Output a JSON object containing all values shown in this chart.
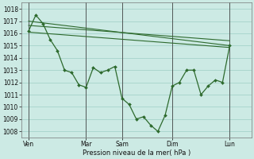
{
  "bg_color": "#cceae4",
  "grid_color": "#9ecec5",
  "line_color": "#2d6a2d",
  "xlabel": "Pression niveau de la mer( hPa )",
  "ylim": [
    1007.5,
    1018.5
  ],
  "yticks": [
    1008,
    1009,
    1010,
    1011,
    1012,
    1013,
    1014,
    1015,
    1016,
    1017,
    1018
  ],
  "xlim": [
    0,
    32
  ],
  "day_labels": [
    "Ven",
    "Mar",
    "Sam",
    "Dim",
    "Lun"
  ],
  "day_positions": [
    1,
    9,
    14,
    21,
    29
  ],
  "vline_positions": [
    1,
    9,
    14,
    21,
    29
  ],
  "trend1": {
    "x": [
      1,
      29
    ],
    "y": [
      1017.0,
      1015.0
    ]
  },
  "trend2": {
    "x": [
      1,
      29
    ],
    "y": [
      1016.1,
      1014.85
    ]
  },
  "trend3": {
    "x": [
      1,
      29
    ],
    "y": [
      1016.65,
      1015.4
    ]
  },
  "detail": {
    "x": [
      1,
      2,
      3,
      4,
      5,
      6,
      7,
      8,
      9,
      10,
      11,
      12,
      13,
      14,
      15,
      16,
      17,
      18,
      19,
      20,
      21,
      22,
      23,
      24,
      25,
      26,
      27,
      28,
      29
    ],
    "y": [
      1016.2,
      1017.5,
      1016.8,
      1015.5,
      1014.6,
      1013.0,
      1012.8,
      1011.8,
      1011.6,
      1013.2,
      1012.8,
      1013.0,
      1013.3,
      1010.7,
      1010.2,
      1009.0,
      1009.2,
      1008.5,
      1008.0,
      1009.3,
      1011.7,
      1012.0,
      1013.0,
      1013.0,
      1011.0,
      1011.7,
      1012.2,
      1012.0,
      1015.0
    ]
  }
}
